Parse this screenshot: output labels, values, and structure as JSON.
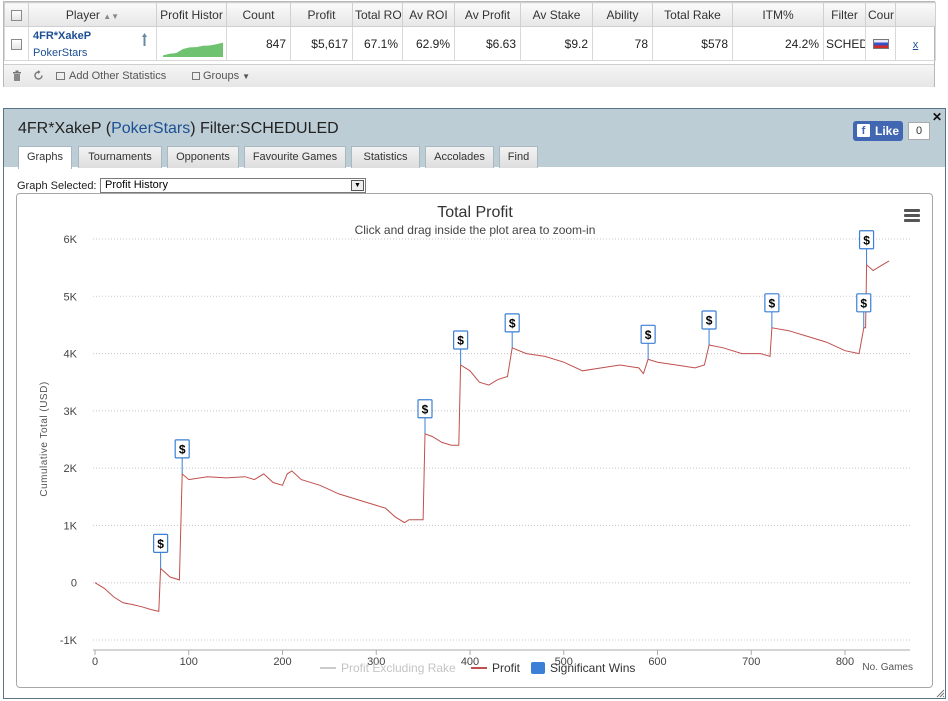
{
  "stats_table": {
    "headers": [
      "Player",
      "Profit Histor",
      "Count",
      "Profit",
      "Total RO",
      "Av ROI",
      "Av Profit",
      "Av Stake",
      "Ability",
      "Total Rake",
      "ITM%",
      "Filter",
      "Cour"
    ],
    "row": {
      "player": "4FR*XakeP",
      "site": "PokerStars",
      "count": "847",
      "profit": "$5,617",
      "total_roi": "67.1%",
      "av_roi": "62.9%",
      "av_profit": "$6.63",
      "av_stake": "$9.2",
      "ability": "78",
      "total_rake": "$578",
      "itm": "24.2%",
      "filter": "SCHED",
      "remove": "x"
    },
    "sparkline": [
      0.1,
      0.2,
      0.25,
      0.5,
      0.6,
      0.62,
      0.7,
      0.72,
      0.8,
      0.9
    ],
    "toolbar": {
      "add_stats": "Add Other Statistics",
      "groups": "Groups"
    }
  },
  "panel": {
    "title_player": "4FR*XakeP",
    "title_site": "PokerStars",
    "title_filter": "Filter:SCHEDULED",
    "like_label": "Like",
    "like_count": "0",
    "tabs": [
      "Graphs",
      "Tournaments",
      "Opponents",
      "Favourite Games",
      "Statistics",
      "Accolades",
      "Find"
    ],
    "graph_selected_label": "Graph Selected:",
    "graph_selected_value": "Profit History"
  },
  "chart_data": {
    "type": "line",
    "title": "Total Profit",
    "subtitle": "Click and drag inside the plot area to zoom-in",
    "xlabel": "No. Games",
    "ylabel": "Cumulative Total (USD)",
    "xlim": [
      0,
      847
    ],
    "ylim": [
      -1000,
      6000
    ],
    "x_ticks": [
      0,
      100,
      200,
      300,
      400,
      500,
      600,
      700,
      800
    ],
    "y_ticks": [
      -1000,
      0,
      1000,
      2000,
      3000,
      4000,
      5000,
      6000
    ],
    "y_tick_labels": [
      "-1K",
      "0",
      "1K",
      "2K",
      "3K",
      "4K",
      "5K",
      "6K"
    ],
    "grid": true,
    "legend_position": "bottom",
    "legend": [
      "Profit Excluding Rake",
      "Profit",
      "Significant Wins"
    ],
    "series": [
      {
        "name": "Profit",
        "color": "#c0504d",
        "points": [
          [
            0,
            0
          ],
          [
            10,
            -100
          ],
          [
            20,
            -250
          ],
          [
            30,
            -350
          ],
          [
            40,
            -380
          ],
          [
            50,
            -420
          ],
          [
            60,
            -470
          ],
          [
            68,
            -500
          ],
          [
            70,
            250
          ],
          [
            80,
            100
          ],
          [
            90,
            50
          ],
          [
            93,
            1900
          ],
          [
            100,
            1800
          ],
          [
            120,
            1850
          ],
          [
            140,
            1830
          ],
          [
            160,
            1850
          ],
          [
            170,
            1800
          ],
          [
            180,
            1900
          ],
          [
            190,
            1750
          ],
          [
            200,
            1700
          ],
          [
            205,
            1900
          ],
          [
            210,
            1950
          ],
          [
            220,
            1800
          ],
          [
            240,
            1700
          ],
          [
            260,
            1550
          ],
          [
            280,
            1450
          ],
          [
            300,
            1350
          ],
          [
            310,
            1300
          ],
          [
            320,
            1150
          ],
          [
            330,
            1050
          ],
          [
            335,
            1100
          ],
          [
            350,
            1100
          ],
          [
            352,
            2600
          ],
          [
            360,
            2550
          ],
          [
            370,
            2450
          ],
          [
            380,
            2400
          ],
          [
            388,
            2400
          ],
          [
            390,
            3800
          ],
          [
            400,
            3700
          ],
          [
            410,
            3500
          ],
          [
            420,
            3450
          ],
          [
            430,
            3550
          ],
          [
            440,
            3600
          ],
          [
            445,
            4100
          ],
          [
            460,
            4000
          ],
          [
            480,
            3950
          ],
          [
            500,
            3850
          ],
          [
            520,
            3700
          ],
          [
            540,
            3750
          ],
          [
            560,
            3800
          ],
          [
            580,
            3750
          ],
          [
            585,
            3650
          ],
          [
            590,
            3900
          ],
          [
            600,
            3850
          ],
          [
            620,
            3800
          ],
          [
            640,
            3750
          ],
          [
            650,
            3800
          ],
          [
            655,
            4150
          ],
          [
            670,
            4100
          ],
          [
            690,
            4000
          ],
          [
            710,
            4000
          ],
          [
            720,
            3950
          ],
          [
            722,
            4450
          ],
          [
            740,
            4400
          ],
          [
            760,
            4300
          ],
          [
            780,
            4200
          ],
          [
            800,
            4050
          ],
          [
            815,
            4000
          ],
          [
            820,
            4450
          ],
          [
            822,
            4450
          ],
          [
            823,
            5550
          ],
          [
            830,
            5450
          ],
          [
            840,
            5550
          ],
          [
            847,
            5617
          ]
        ]
      }
    ],
    "significant_wins": [
      [
        70,
        250
      ],
      [
        93,
        1900
      ],
      [
        352,
        2600
      ],
      [
        390,
        3800
      ],
      [
        445,
        4100
      ],
      [
        590,
        3900
      ],
      [
        655,
        4150
      ],
      [
        722,
        4450
      ],
      [
        820,
        4450
      ],
      [
        823,
        5550
      ]
    ],
    "significant_wins_color": "#3b7fd6",
    "marker_label": "$"
  }
}
